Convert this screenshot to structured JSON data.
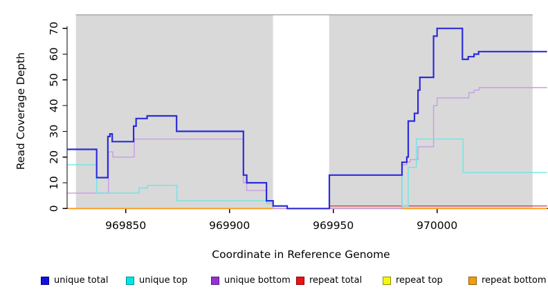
{
  "chart_data": {
    "type": "line",
    "subtype": "step-coverage-plot",
    "title": "",
    "xlabel": "Coordinate in Reference Genome",
    "ylabel": "Read Coverage Depth",
    "xlim": [
      969822,
      970053
    ],
    "ylim": [
      0,
      70
    ],
    "x_ticks": [
      969850,
      969900,
      969950,
      970000
    ],
    "y_ticks": [
      0,
      10,
      20,
      30,
      40,
      50,
      60,
      70
    ],
    "grid": false,
    "legend_position": "bottom",
    "plot_background_color": "#d9d9d9",
    "plot_border_top_color": "#9a9a9a",
    "background_regions": [
      {
        "name": "shaded-region-left",
        "x0": 969826,
        "x1": 969921,
        "color": "#d9d9d9"
      },
      {
        "name": "uncovered-gap",
        "x0": 969921,
        "x1": 969948,
        "color": "#ffffff"
      },
      {
        "name": "shaded-region-right",
        "x0": 969948,
        "x1": 970046,
        "color": "#d9d9d9"
      }
    ],
    "series": [
      {
        "name": "unique total",
        "line_color": "#2b2bdb",
        "legend_color": "#1111e0",
        "legend_border": "#000080",
        "line_width": 2.2,
        "points": [
          [
            969822,
            23
          ],
          [
            969836,
            12
          ],
          [
            969841.4,
            28
          ],
          [
            969842.4,
            29
          ],
          [
            969843.5,
            26
          ],
          [
            969853.8,
            32
          ],
          [
            969855,
            35
          ],
          [
            969860.3,
            36
          ],
          [
            969874.5,
            30
          ],
          [
            969906.7,
            13
          ],
          [
            969908.3,
            10
          ],
          [
            969917.8,
            3
          ],
          [
            969921,
            1
          ],
          [
            969927.8,
            0
          ],
          [
            969948.1,
            13
          ],
          [
            969983.1,
            18
          ],
          [
            969985.4,
            20
          ],
          [
            969986.1,
            34
          ],
          [
            969989.1,
            37
          ],
          [
            969990.8,
            46
          ],
          [
            969991.7,
            51
          ],
          [
            969998.3,
            67
          ],
          [
            970000,
            70
          ],
          [
            970012.2,
            58
          ],
          [
            970015,
            59
          ],
          [
            970017.8,
            60
          ],
          [
            970020,
            61
          ],
          [
            970053,
            61
          ]
        ]
      },
      {
        "name": "unique top",
        "line_color": "#6ce6e6",
        "legend_color": "#00e6e6",
        "legend_border": "#008b8b",
        "line_width": 1.4,
        "points": [
          [
            969822,
            17
          ],
          [
            969836,
            6
          ],
          [
            969856.4,
            8
          ],
          [
            969860.5,
            9
          ],
          [
            969874.7,
            3
          ],
          [
            969917.8,
            2
          ],
          [
            969921,
            1
          ],
          [
            969927.8,
            0
          ],
          [
            969948.1,
            13
          ],
          [
            969983.1,
            1
          ],
          [
            969986.1,
            16
          ],
          [
            969990,
            27
          ],
          [
            970012.5,
            14
          ],
          [
            970053,
            14
          ]
        ]
      },
      {
        "name": "unique bottom",
        "line_color": "#c89ce4",
        "legend_color": "#9b2fd6",
        "legend_border": "#5a1a80",
        "line_width": 1.4,
        "points": [
          [
            969822,
            6
          ],
          [
            969841.7,
            22
          ],
          [
            969843.8,
            20
          ],
          [
            969854.1,
            27
          ],
          [
            969906.7,
            10
          ],
          [
            969908.3,
            7
          ],
          [
            969917.8,
            2
          ],
          [
            969921,
            0
          ],
          [
            969983.1,
            17
          ],
          [
            969985.4,
            18
          ],
          [
            969987,
            19
          ],
          [
            969990.8,
            24
          ],
          [
            969998.3,
            40
          ],
          [
            970000,
            43
          ],
          [
            970015.3,
            45
          ],
          [
            970017.8,
            46
          ],
          [
            970020.2,
            47
          ],
          [
            970053,
            47
          ]
        ]
      },
      {
        "name": "repeat total",
        "line_color": "#d04545",
        "legend_color": "#ee1111",
        "legend_border": "#8b0000",
        "line_width": 1.4,
        "points": [
          [
            969822,
            0
          ],
          [
            969948.1,
            1
          ],
          [
            970053,
            1
          ]
        ]
      },
      {
        "name": "repeat top",
        "line_color": "#f2f20c",
        "legend_color": "#f7f70a",
        "legend_border": "#8b8b00",
        "line_width": 1.2,
        "points": [
          [
            969822,
            0
          ],
          [
            970053,
            0
          ]
        ]
      },
      {
        "name": "repeat bottom",
        "line_color": "#ff9a1c",
        "legend_color": "#f59b0f",
        "legend_border": "#8b5a00",
        "line_width": 1.8,
        "points": [
          [
            969822,
            0
          ],
          [
            970053,
            0
          ]
        ]
      }
    ]
  }
}
